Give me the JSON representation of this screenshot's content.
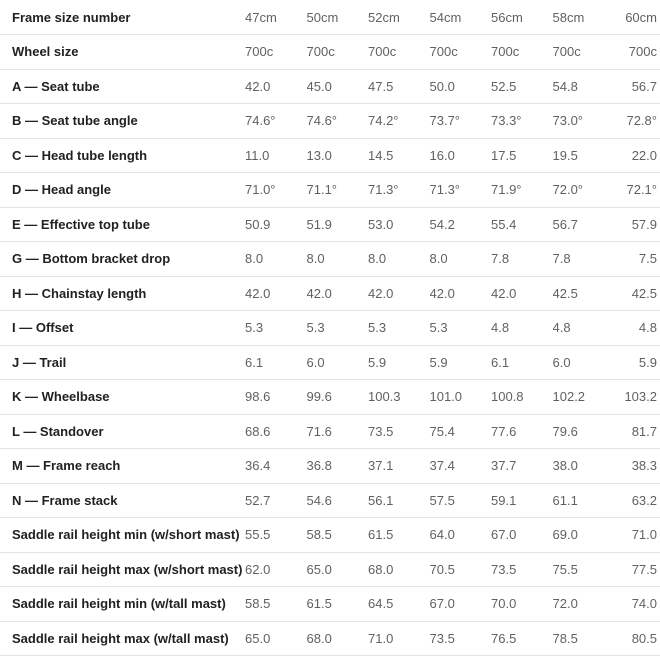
{
  "colors": {
    "background": "#ffffff",
    "label_text": "#212121",
    "value_text": "#616161",
    "divider": "#e4e4e4"
  },
  "chart_data": {
    "type": "table",
    "columns_header": "Frame size number",
    "columns": [
      "47cm",
      "50cm",
      "52cm",
      "54cm",
      "56cm",
      "58cm",
      "60cm"
    ],
    "rows": [
      {
        "label": "Wheel size",
        "values": [
          "700c",
          "700c",
          "700c",
          "700c",
          "700c",
          "700c",
          "700c"
        ]
      },
      {
        "label": "A — Seat tube",
        "values": [
          "42.0",
          "45.0",
          "47.5",
          "50.0",
          "52.5",
          "54.8",
          "56.7"
        ]
      },
      {
        "label": "B — Seat tube angle",
        "values": [
          "74.6°",
          "74.6°",
          "74.2°",
          "73.7°",
          "73.3°",
          "73.0°",
          "72.8°"
        ]
      },
      {
        "label": "C — Head tube length",
        "values": [
          "11.0",
          "13.0",
          "14.5",
          "16.0",
          "17.5",
          "19.5",
          "22.0"
        ]
      },
      {
        "label": "D — Head angle",
        "values": [
          "71.0°",
          "71.1°",
          "71.3°",
          "71.3°",
          "71.9°",
          "72.0°",
          "72.1°"
        ]
      },
      {
        "label": "E — Effective top tube",
        "values": [
          "50.9",
          "51.9",
          "53.0",
          "54.2",
          "55.4",
          "56.7",
          "57.9"
        ]
      },
      {
        "label": "G — Bottom bracket drop",
        "values": [
          "8.0",
          "8.0",
          "8.0",
          "8.0",
          "7.8",
          "7.8",
          "7.5"
        ]
      },
      {
        "label": "H — Chainstay length",
        "values": [
          "42.0",
          "42.0",
          "42.0",
          "42.0",
          "42.0",
          "42.5",
          "42.5"
        ]
      },
      {
        "label": "I — Offset",
        "values": [
          "5.3",
          "5.3",
          "5.3",
          "5.3",
          "4.8",
          "4.8",
          "4.8"
        ]
      },
      {
        "label": "J — Trail",
        "values": [
          "6.1",
          "6.0",
          "5.9",
          "5.9",
          "6.1",
          "6.0",
          "5.9"
        ]
      },
      {
        "label": "K — Wheelbase",
        "values": [
          "98.6",
          "99.6",
          "100.3",
          "101.0",
          "100.8",
          "102.2",
          "103.2"
        ]
      },
      {
        "label": "L — Standover",
        "values": [
          "68.6",
          "71.6",
          "73.5",
          "75.4",
          "77.6",
          "79.6",
          "81.7"
        ]
      },
      {
        "label": "M — Frame reach",
        "values": [
          "36.4",
          "36.8",
          "37.1",
          "37.4",
          "37.7",
          "38.0",
          "38.3"
        ]
      },
      {
        "label": "N — Frame stack",
        "values": [
          "52.7",
          "54.6",
          "56.1",
          "57.5",
          "59.1",
          "61.1",
          "63.2"
        ]
      },
      {
        "label": "Saddle rail height min (w/short mast)",
        "values": [
          "55.5",
          "58.5",
          "61.5",
          "64.0",
          "67.0",
          "69.0",
          "71.0"
        ]
      },
      {
        "label": "Saddle rail height max (w/short mast)",
        "values": [
          "62.0",
          "65.0",
          "68.0",
          "70.5",
          "73.5",
          "75.5",
          "77.5"
        ]
      },
      {
        "label": "Saddle rail height min (w/tall mast)",
        "values": [
          "58.5",
          "61.5",
          "64.5",
          "67.0",
          "70.0",
          "72.0",
          "74.0"
        ]
      },
      {
        "label": "Saddle rail height max (w/tall mast)",
        "values": [
          "65.0",
          "68.0",
          "71.0",
          "73.5",
          "76.5",
          "78.5",
          "80.5"
        ]
      }
    ]
  }
}
